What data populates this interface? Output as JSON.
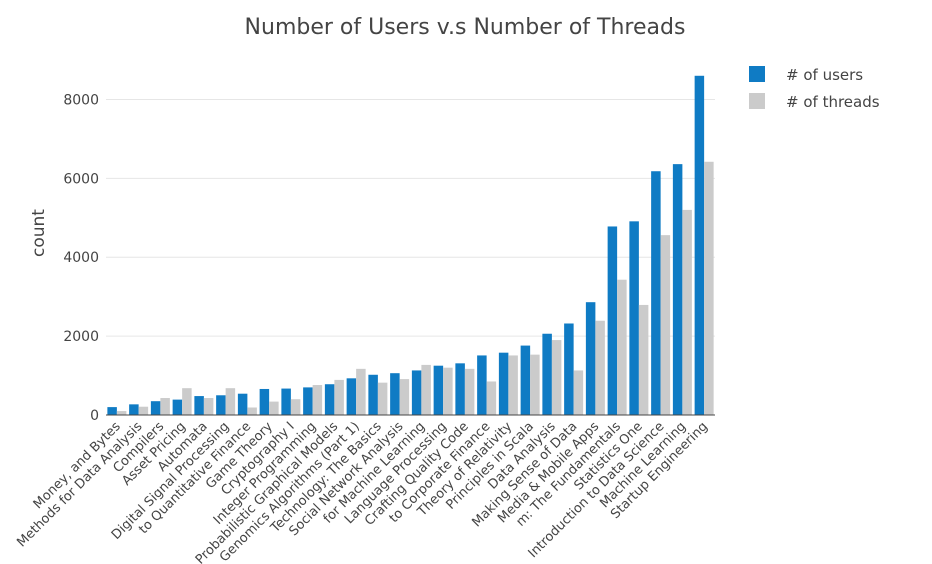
{
  "chart_data": {
    "type": "bar",
    "title": "Number of Users v.s Number of Threads",
    "xlabel": "",
    "ylabel": "count",
    "ylim": [
      0,
      9000
    ],
    "yticks": [
      0,
      2000,
      4000,
      6000,
      8000
    ],
    "grid": true,
    "legend_position": "top-right",
    "colors": {
      "users": "#0f7bc4",
      "threads": "#cbcbcb"
    },
    "categories": [
      "Money, and Bytes",
      "Methods for Data Analysis",
      "Compilers",
      "Asset Pricing",
      "Automata",
      "Digital Signal Processing",
      "to Quantitative Finance",
      "Game Theory",
      "Cryptography I",
      "Integer Programming",
      "Probabilistic Graphical Models",
      "Genomics Algorithms (Part 1)",
      "Technology: The Basics",
      "Social Network Analysis",
      "for Machine Learning",
      "Language Processing",
      "Crafting Quality Code",
      "to Corporate Finance",
      "Theory of Relativity",
      "Principles in Scala",
      "Data Analysis",
      "Making Sense of Data",
      "Media & Mobile Apps",
      "m: The Fundamentals",
      "Statistics One",
      "Introduction to Data Science",
      "Machine Learning",
      "Startup Engineering"
    ],
    "series": [
      {
        "name": "# of users",
        "values": [
          200,
          270,
          350,
          390,
          480,
          500,
          540,
          660,
          670,
          700,
          780,
          930,
          1020,
          1060,
          1130,
          1250,
          1310,
          1510,
          1580,
          1760,
          2060,
          2320,
          2860,
          4780,
          4910,
          6180,
          6360,
          8600
        ]
      },
      {
        "name": "# of threads",
        "values": [
          100,
          210,
          430,
          680,
          430,
          680,
          190,
          340,
          400,
          760,
          890,
          1170,
          820,
          910,
          1270,
          1200,
          1170,
          850,
          1510,
          1530,
          1900,
          1130,
          2390,
          3430,
          2790,
          4560,
          5200,
          6420
        ]
      }
    ]
  }
}
